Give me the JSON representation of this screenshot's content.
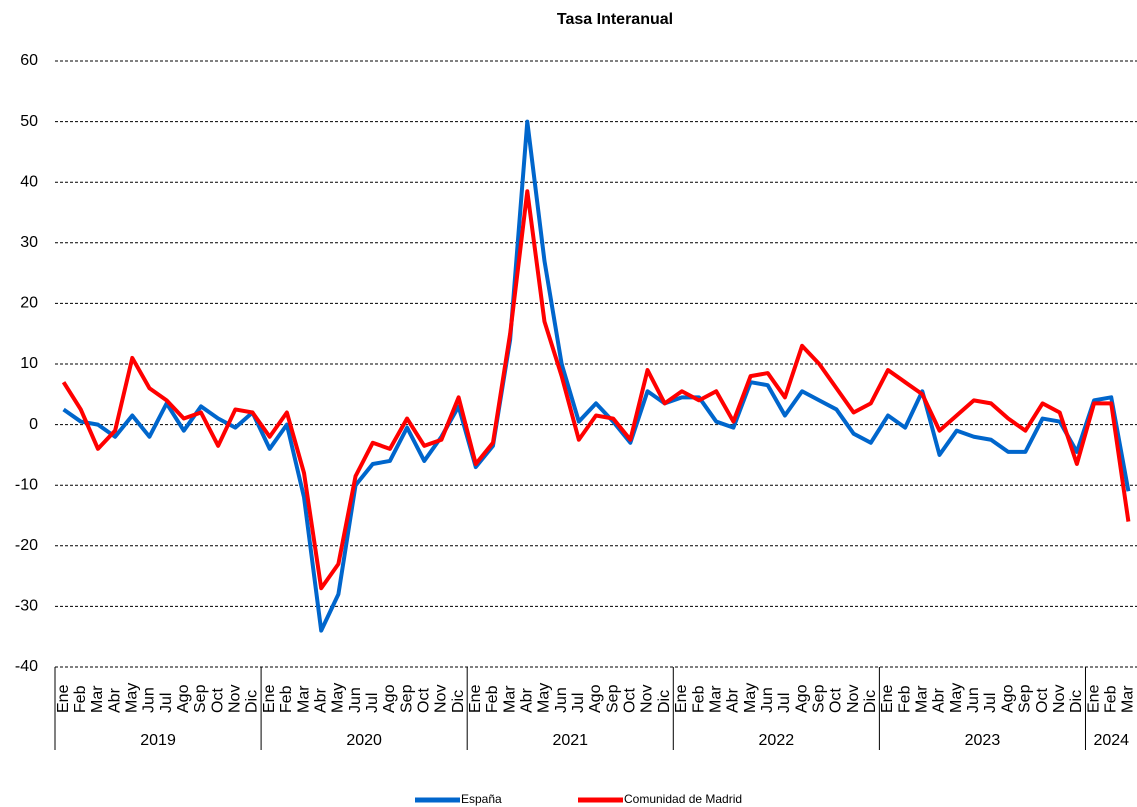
{
  "chart_data": {
    "type": "line",
    "title": "Tasa Interanual",
    "categories": [
      "Ene",
      "Feb",
      "Mar",
      "Abr",
      "May",
      "Jun",
      "Jul",
      "Ago",
      "Sep",
      "Oct",
      "Nov",
      "Dic",
      "Ene",
      "Feb",
      "Mar",
      "Abr",
      "May",
      "Jun",
      "Jul",
      "Ago",
      "Sep",
      "Oct",
      "Nov",
      "Dic",
      "Ene",
      "Feb",
      "Mar",
      "Abr",
      "May",
      "Jun",
      "Jul",
      "Ago",
      "Sep",
      "Oct",
      "Nov",
      "Dic",
      "Ene",
      "Feb",
      "Mar",
      "Abr",
      "May",
      "Jun",
      "Jul",
      "Ago",
      "Sep",
      "Oct",
      "Nov",
      "Dic",
      "Ene",
      "Feb",
      "Mar",
      "Abr",
      "May",
      "Jun",
      "Jul",
      "Ago",
      "Sep",
      "Oct",
      "Nov",
      "Dic",
      "Ene",
      "Feb",
      "Mar"
    ],
    "groups": [
      {
        "label": "2019",
        "size": 12
      },
      {
        "label": "2020",
        "size": 12
      },
      {
        "label": "2021",
        "size": 12
      },
      {
        "label": "2022",
        "size": 12
      },
      {
        "label": "2023",
        "size": 12
      },
      {
        "label": "2024",
        "size": 3
      }
    ],
    "series": [
      {
        "name": "España",
        "color": "#0066cc",
        "values": [
          2.5,
          0.5,
          0,
          -2,
          1.5,
          -2,
          3.5,
          -1,
          3,
          1,
          -0.5,
          2,
          -4,
          0,
          -12,
          -34,
          -28,
          -10,
          -6.5,
          -6,
          -0.5,
          -6,
          -2,
          3,
          -7,
          -3.5,
          14,
          50,
          27,
          10,
          0.5,
          3.5,
          0.5,
          -3,
          5.5,
          3.5,
          4.5,
          4.5,
          0.5,
          -0.5,
          7,
          6.5,
          1.5,
          5.5,
          4,
          2.5,
          -1.5,
          -3,
          1.5,
          -0.5,
          5.5,
          -5,
          -1,
          -2,
          -2.5,
          -4.5,
          -4.5,
          1,
          0.5,
          -4.5,
          4,
          4.5,
          -11
        ]
      },
      {
        "name": "Comunidad de Madrid",
        "color": "#ff0000",
        "values": [
          7,
          2.5,
          -4,
          -1,
          11,
          6,
          4,
          1,
          2,
          -3.5,
          2.5,
          2,
          -2,
          2,
          -8,
          -27,
          -23,
          -8.5,
          -3,
          -4,
          1,
          -3.5,
          -2.5,
          4.5,
          -6.5,
          -3,
          15,
          38.5,
          17,
          8,
          -2.5,
          1.5,
          1,
          -2.5,
          9,
          3.5,
          5.5,
          4,
          5.5,
          0.5,
          8,
          8.5,
          4.5,
          13,
          10,
          6,
          2,
          3.5,
          9,
          7,
          5,
          -1,
          1.5,
          4,
          3.5,
          1,
          -1,
          3.5,
          2,
          -6.5,
          3.5,
          3.5,
          -16
        ]
      }
    ],
    "ylim": [
      -40,
      60
    ],
    "yticks": [
      -40,
      -30,
      -20,
      -10,
      0,
      10,
      20,
      30,
      40,
      50,
      60
    ],
    "grid": true,
    "legend": "bottom"
  }
}
